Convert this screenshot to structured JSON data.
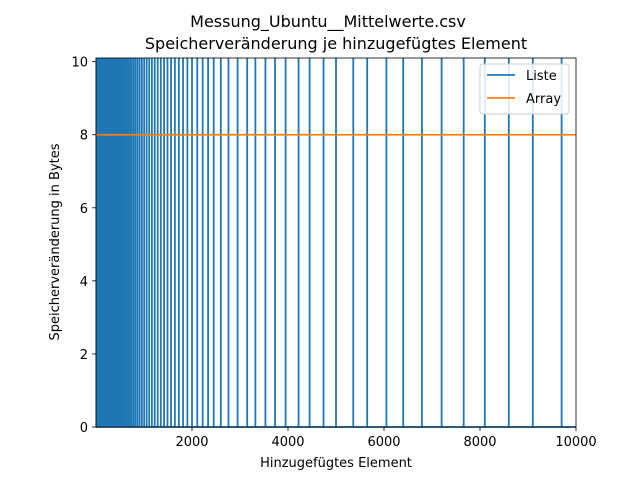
{
  "chart_data": {
    "type": "line",
    "title": "Messung_Ubuntu__Mittelwerte.csv",
    "subtitle": "Speicherveränderung je hinzugefügtes Element",
    "xlabel": "Hinzugefügtes Element",
    "ylabel": "Speicherveränderung in Bytes",
    "xlim": [
      0,
      10000
    ],
    "ylim": [
      0,
      10.1
    ],
    "xticks": [
      2000,
      4000,
      6000,
      8000,
      10000
    ],
    "yticks": [
      0,
      2,
      4,
      6,
      8,
      10
    ],
    "grid": false,
    "legend_position": "top-right",
    "series": [
      {
        "name": "Liste",
        "color": "#1f77b4",
        "spike_value": 10.1,
        "spike_x": [
          8,
          16,
          24,
          32,
          40,
          48,
          56,
          64,
          72,
          80,
          88,
          96,
          104,
          112,
          120,
          128,
          136,
          144,
          152,
          160,
          168,
          176,
          184,
          192,
          200,
          216,
          232,
          248,
          264,
          280,
          296,
          312,
          328,
          344,
          360,
          376,
          396,
          416,
          436,
          456,
          480,
          504,
          528,
          556,
          584,
          612,
          644,
          676,
          710,
          746,
          784,
          824,
          866,
          910,
          956,
          1004,
          1055,
          1108,
          1164,
          1223,
          1285,
          1350,
          1418,
          1489,
          1564,
          1643,
          1726,
          1813,
          1904,
          2000,
          2110,
          2222,
          2335,
          2452,
          2600,
          2760,
          2950,
          3150,
          3320,
          3530,
          3730,
          3950,
          4220,
          4450,
          4740,
          5000,
          5360,
          5650,
          6050,
          6400,
          6790,
          7200,
          7660,
          8100,
          8600,
          9100,
          9700
        ]
      },
      {
        "name": "Array",
        "color": "#ff7f0e",
        "x": [
          0,
          10000
        ],
        "y": [
          8,
          8
        ]
      }
    ]
  }
}
